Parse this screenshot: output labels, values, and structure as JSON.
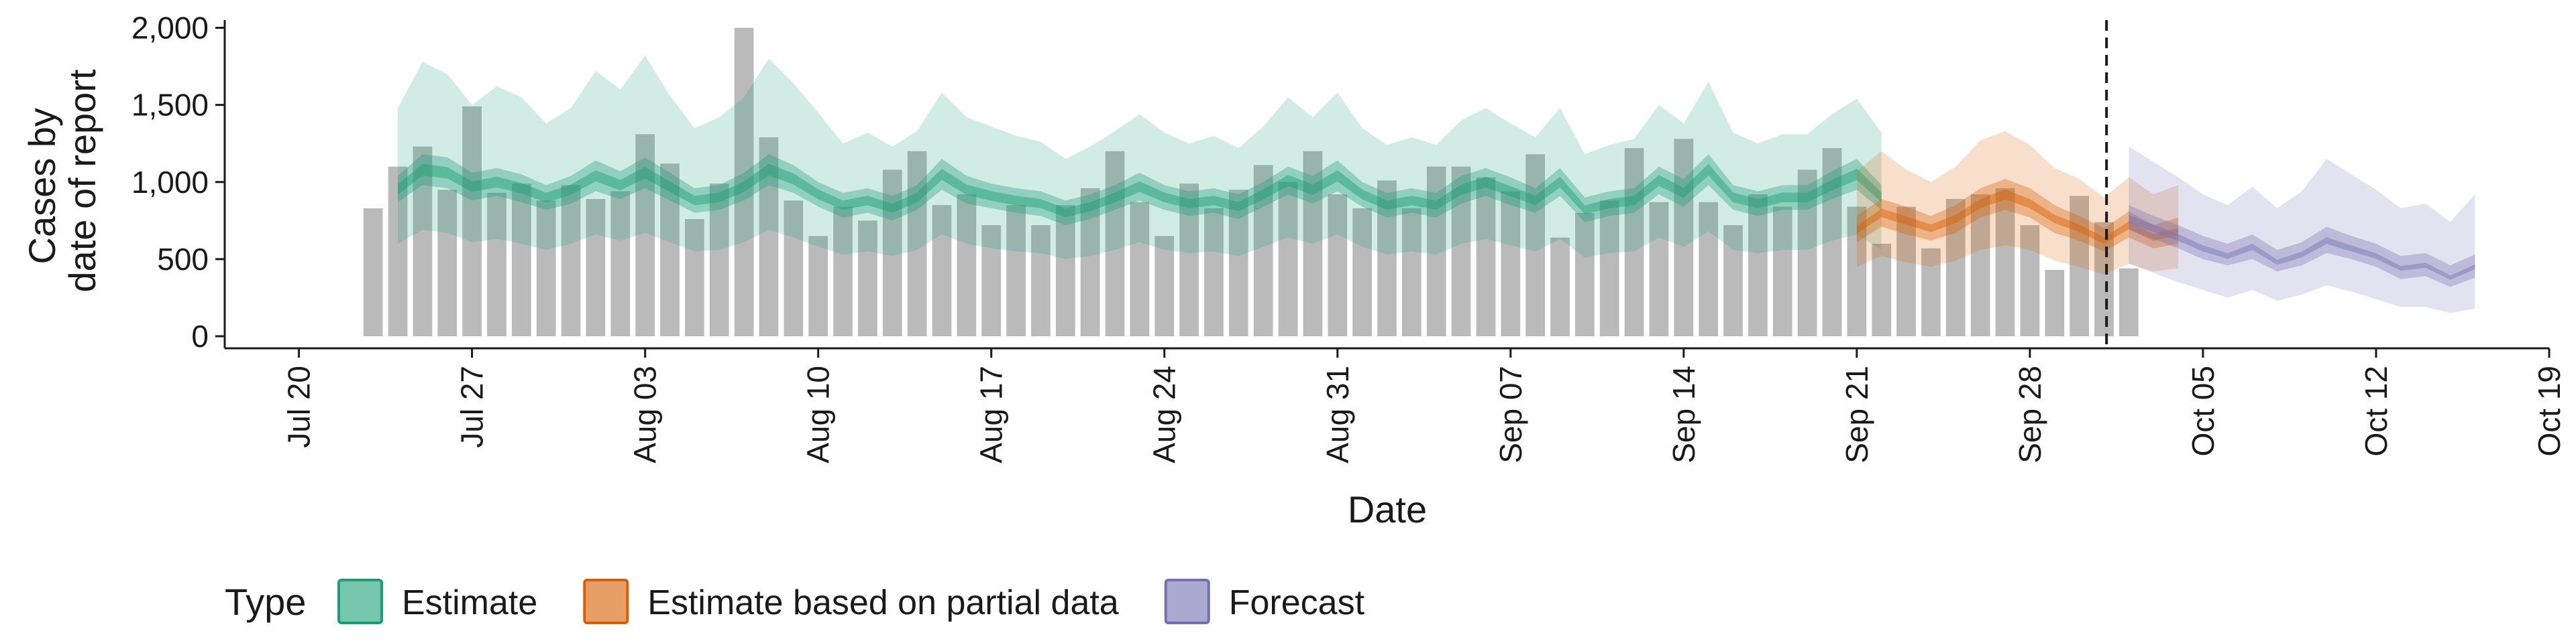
{
  "chart_data": {
    "type": "bar",
    "xlabel": "Date",
    "ylabel_lines": [
      "Cases by",
      "date of report"
    ],
    "y_ticks": [
      0,
      500,
      1000,
      1500,
      2000
    ],
    "y_tick_labels": [
      "0",
      "500",
      "1,000",
      "1,500",
      "2,000"
    ],
    "ylim": [
      0,
      2050
    ],
    "xlim": [
      "2020-07-17",
      "2020-10-19"
    ],
    "x_ticks": [
      "2020-07-20",
      "2020-07-27",
      "2020-08-03",
      "2020-08-10",
      "2020-08-17",
      "2020-08-24",
      "2020-08-31",
      "2020-09-07",
      "2020-09-14",
      "2020-09-21",
      "2020-09-28",
      "2020-10-05",
      "2020-10-12",
      "2020-10-19"
    ],
    "x_tick_labels": [
      "Jul 20",
      "Jul 27",
      "Aug 03",
      "Aug 10",
      "Aug 17",
      "Aug 24",
      "Aug 31",
      "Sep 07",
      "Sep 14",
      "Sep 21",
      "Sep 28",
      "Oct 05",
      "Oct 12",
      "Oct 19"
    ],
    "vline_date": "2020-10-01",
    "grid": false,
    "legend_placement": "bottom",
    "legend_title": "Type",
    "colors": {
      "bar": "#b3b3b3",
      "estimate": "#1b9e77",
      "estimate_partial": "#d95f02",
      "forecast": "#7570b3",
      "vline": "#1a1a1a"
    },
    "reported_cases": {
      "start_date": "2020-07-23",
      "values": [
        830,
        1100,
        1230,
        950,
        1490,
        930,
        990,
        880,
        980,
        890,
        940,
        1310,
        1120,
        760,
        990,
        2000,
        1290,
        880,
        650,
        840,
        750,
        1080,
        1200,
        850,
        920,
        720,
        850,
        720,
        850,
        960,
        1200,
        870,
        650,
        990,
        830,
        950,
        1110,
        1000,
        1200,
        920,
        830,
        1010,
        830,
        1100,
        1100,
        1030,
        940,
        1180,
        640,
        800,
        880,
        1220,
        870,
        1280,
        870,
        720,
        920,
        840,
        1080,
        1220,
        840,
        600,
        840,
        570,
        890,
        920,
        960,
        720,
        430,
        910,
        740,
        440
      ]
    },
    "series": [
      {
        "name": "Estimate",
        "color": "#1b9e77",
        "start_date": "2020-07-24",
        "median": [
          950,
          1080,
          1060,
          970,
          1000,
          960,
          900,
          950,
          1040,
          980,
          1060,
          970,
          880,
          900,
          970,
          1080,
          1020,
          920,
          850,
          880,
          830,
          900,
          1050,
          950,
          910,
          880,
          860,
          800,
          840,
          900,
          970,
          900,
          860,
          880,
          840,
          920,
          1010,
          950,
          1040,
          920,
          850,
          880,
          850,
          950,
          1000,
          940,
          880,
          1000,
          820,
          860,
          880,
          1010,
          930,
          1080,
          900,
          860,
          900,
          900,
          980,
          1050,
          900
        ],
        "lower50": [
          870,
          980,
          960,
          880,
          910,
          870,
          820,
          860,
          940,
          890,
          960,
          880,
          800,
          820,
          880,
          980,
          930,
          840,
          770,
          800,
          750,
          820,
          950,
          860,
          830,
          800,
          780,
          720,
          760,
          820,
          880,
          820,
          780,
          800,
          760,
          840,
          920,
          860,
          940,
          840,
          770,
          800,
          770,
          860,
          910,
          850,
          800,
          910,
          740,
          780,
          800,
          920,
          840,
          980,
          820,
          780,
          820,
          820,
          890,
          950,
          820
        ],
        "upper50": [
          1040,
          1180,
          1160,
          1060,
          1090,
          1050,
          980,
          1040,
          1140,
          1070,
          1160,
          1060,
          960,
          980,
          1060,
          1180,
          1110,
          1000,
          930,
          960,
          910,
          980,
          1150,
          1040,
          990,
          960,
          940,
          880,
          920,
          980,
          1060,
          980,
          940,
          960,
          920,
          1000,
          1100,
          1040,
          1140,
          1000,
          930,
          960,
          930,
          1040,
          1090,
          1030,
          960,
          1090,
          900,
          940,
          960,
          1100,
          1020,
          1180,
          980,
          940,
          980,
          980,
          1070,
          1150,
          980
        ],
        "lower90": [
          600,
          690,
          670,
          610,
          630,
          600,
          560,
          600,
          660,
          620,
          670,
          610,
          550,
          560,
          610,
          690,
          640,
          580,
          530,
          550,
          520,
          560,
          660,
          600,
          570,
          550,
          540,
          500,
          520,
          560,
          610,
          560,
          540,
          550,
          520,
          580,
          640,
          600,
          660,
          580,
          530,
          550,
          530,
          600,
          630,
          590,
          550,
          630,
          510,
          540,
          550,
          640,
          580,
          680,
          560,
          540,
          560,
          560,
          620,
          660,
          560
        ],
        "upper90": [
          1480,
          1780,
          1700,
          1500,
          1620,
          1550,
          1380,
          1480,
          1720,
          1600,
          1820,
          1560,
          1350,
          1420,
          1550,
          1800,
          1640,
          1450,
          1250,
          1320,
          1230,
          1330,
          1580,
          1420,
          1360,
          1300,
          1260,
          1150,
          1230,
          1330,
          1440,
          1320,
          1250,
          1300,
          1220,
          1360,
          1550,
          1420,
          1580,
          1350,
          1240,
          1290,
          1240,
          1400,
          1480,
          1380,
          1290,
          1480,
          1180,
          1240,
          1280,
          1500,
          1380,
          1650,
          1320,
          1250,
          1310,
          1310,
          1440,
          1540,
          1320
        ]
      },
      {
        "name": "Estimate based on partial data",
        "color": "#d95f02",
        "start_date": "2020-09-21",
        "median": [
          690,
          800,
          750,
          700,
          760,
          860,
          920,
          860,
          760,
          700,
          620,
          720,
          640,
          680
        ],
        "lower50": [
          610,
          710,
          660,
          620,
          670,
          770,
          820,
          770,
          670,
          620,
          550,
          640,
          570,
          600
        ],
        "upper50": [
          780,
          890,
          840,
          780,
          850,
          960,
          1020,
          960,
          850,
          780,
          700,
          810,
          720,
          770
        ],
        "lower90": [
          450,
          520,
          480,
          450,
          490,
          560,
          590,
          560,
          490,
          450,
          400,
          470,
          420,
          440
        ],
        "upper90": [
          1070,
          1200,
          1080,
          1000,
          1100,
          1270,
          1330,
          1240,
          1090,
          1020,
          900,
          1030,
          920,
          980
        ]
      },
      {
        "name": "Forecast",
        "color": "#7570b3",
        "start_date": "2020-10-02",
        "median": [
          760,
          700,
          640,
          570,
          520,
          580,
          480,
          530,
          620,
          570,
          520,
          440,
          460,
          380,
          450
        ],
        "lower50": [
          690,
          630,
          570,
          500,
          460,
          500,
          420,
          460,
          540,
          500,
          450,
          370,
          390,
          320,
          380
        ],
        "upper50": [
          850,
          780,
          720,
          650,
          600,
          660,
          560,
          610,
          710,
          650,
          600,
          520,
          540,
          460,
          530
        ],
        "lower90": [
          470,
          410,
          350,
          300,
          250,
          300,
          230,
          270,
          330,
          290,
          240,
          190,
          190,
          150,
          180
        ],
        "upper90": [
          1230,
          1130,
          1030,
          920,
          850,
          970,
          830,
          940,
          1150,
          1050,
          950,
          830,
          860,
          740,
          920
        ]
      }
    ]
  }
}
